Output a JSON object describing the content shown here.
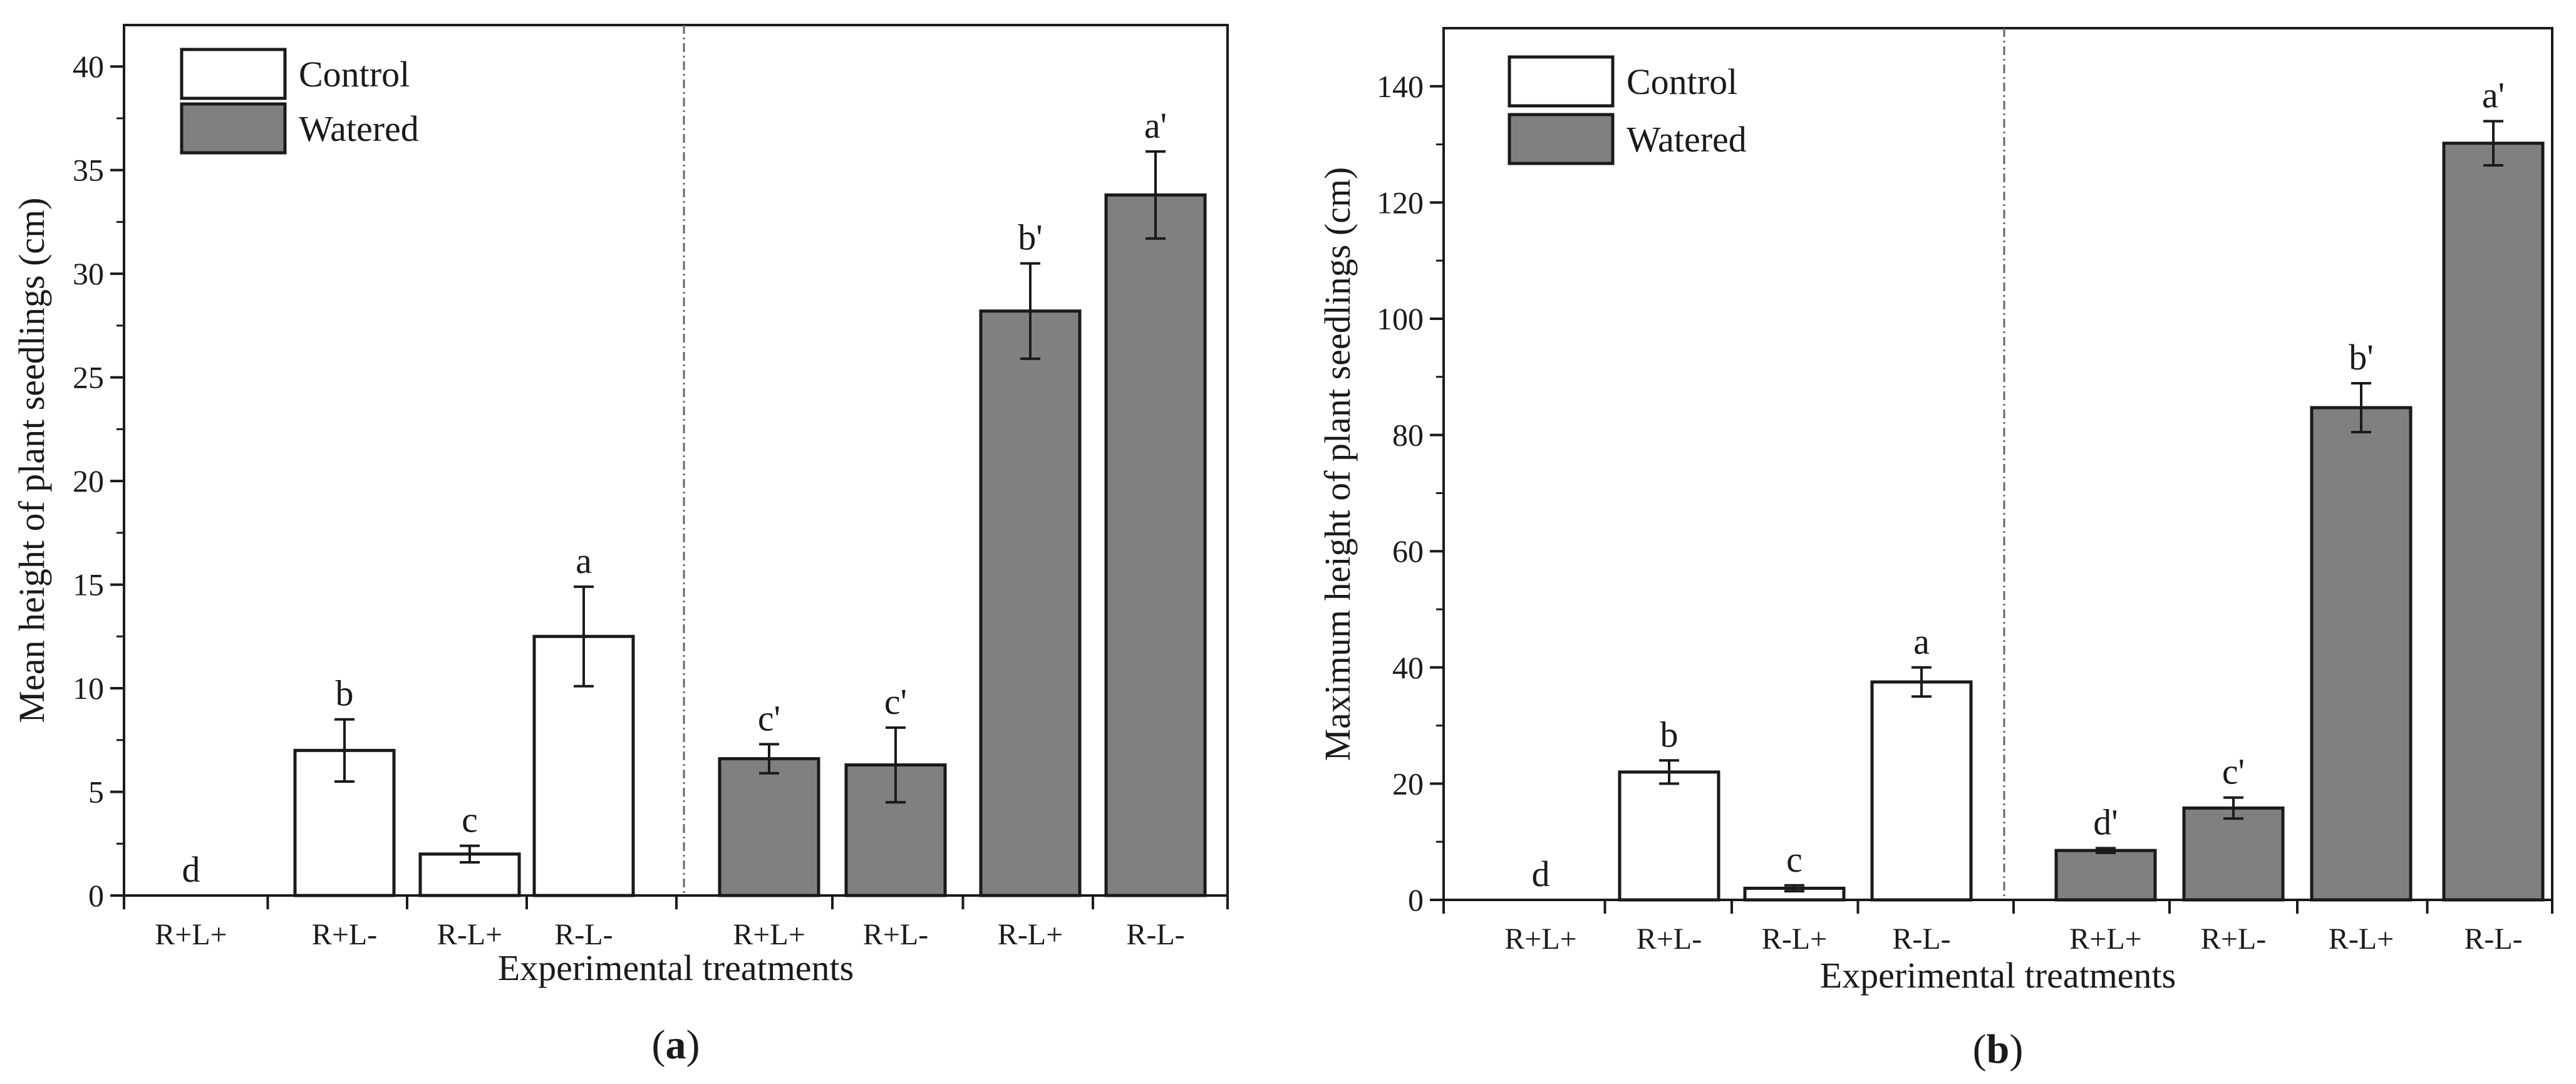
{
  "chart_data": [
    {
      "type": "bar",
      "panel_label": {
        "open": "(",
        "letter": "a",
        "close": ")"
      },
      "title": "",
      "xlabel": "Experimental treatments",
      "ylabel": "Mean height of plant seedlings (cm)",
      "ylim": [
        0,
        42
      ],
      "yticks": [
        0,
        5,
        10,
        15,
        20,
        25,
        30,
        35,
        40
      ],
      "ytick_labels": [
        "0",
        "5",
        "10",
        "15",
        "20",
        "25",
        "30",
        "35",
        "40"
      ],
      "grid": false,
      "legend": {
        "position": "top-left",
        "entries": [
          "Control",
          "Watered"
        ]
      },
      "categories": [
        "R+L+",
        "R+L-",
        "R-L+",
        "R-L-"
      ],
      "series": [
        {
          "name": "Control",
          "color": "#ffffff",
          "values": [
            0,
            7.0,
            2.0,
            12.5
          ],
          "errors": [
            0,
            1.5,
            0.4,
            2.4
          ],
          "labels": [
            "d",
            "b",
            "c",
            "a"
          ]
        },
        {
          "name": "Watered",
          "color": "#808080",
          "values": [
            6.6,
            6.3,
            28.2,
            33.8
          ],
          "errors": [
            0.7,
            1.8,
            2.3,
            2.1
          ],
          "labels": [
            "c'",
            "c'",
            "b'",
            "a'"
          ]
        }
      ]
    },
    {
      "type": "bar",
      "panel_label": {
        "open": "(",
        "letter": "b",
        "close": ")"
      },
      "title": "",
      "xlabel": "Experimental treatments",
      "ylabel": "Maximum height of plant seedlings (cm)",
      "ylim": [
        0,
        150
      ],
      "yticks": [
        0,
        20,
        40,
        60,
        80,
        100,
        120,
        140
      ],
      "ytick_labels": [
        "0",
        "20",
        "40",
        "60",
        "80",
        "100",
        "120",
        "140"
      ],
      "grid": false,
      "legend": {
        "position": "top-left",
        "entries": [
          "Control",
          "Watered"
        ]
      },
      "categories": [
        "R+L+",
        "R+L-",
        "R-L+",
        "R-L-"
      ],
      "series": [
        {
          "name": "Control",
          "color": "#ffffff",
          "values": [
            0,
            22,
            2,
            37.5
          ],
          "errors": [
            0,
            2.0,
            0.5,
            2.5
          ],
          "labels": [
            "d",
            "b",
            "c",
            "a"
          ]
        },
        {
          "name": "Watered",
          "color": "#808080",
          "values": [
            8.5,
            15.8,
            84.7,
            130.2
          ],
          "errors": [
            0.4,
            1.8,
            4.2,
            3.8
          ],
          "labels": [
            "d'",
            "c'",
            "b'",
            "a'"
          ]
        }
      ]
    }
  ]
}
